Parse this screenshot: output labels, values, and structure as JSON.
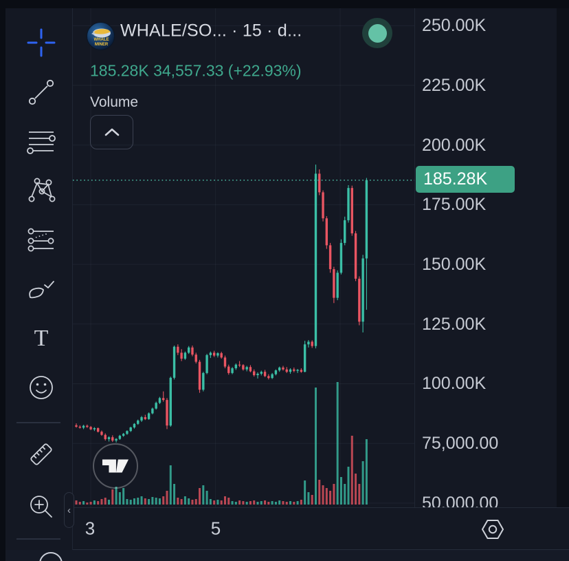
{
  "header": {
    "logo_name": "whale-miner-logo",
    "logo_text": "WHALE MINER",
    "symbol_title": "WHALE/SO... · 15 · d...",
    "price_line": "185.28K 34,557.33 (+22.93%)",
    "status": "connected",
    "indicator_label": "Volume"
  },
  "toolbar": {
    "collapse_chevron": "‹",
    "items": [
      "crosshair",
      "trend-line",
      "fib-retracement",
      "xabcd-pattern",
      "prediction-lines",
      "brush",
      "text",
      "emoji",
      "measure",
      "zoom-in"
    ]
  },
  "price_axis": {
    "labels": [
      "250.00K",
      "225.00K",
      "200.00K",
      "175.00K",
      "150.00K",
      "125.00K",
      "100.00K",
      "75,000.00",
      "50,000.00"
    ],
    "current_price_badge": "185.28K",
    "badge_color": "#3da184"
  },
  "time_axis": {
    "labels": [
      "3",
      "5"
    ],
    "settings_icon": "hexagon-settings-icon"
  },
  "colors": {
    "background": "#141823",
    "up": "#3bbfa6",
    "down": "#e95562",
    "accent_teal_text": "#3fa88d",
    "current_price_line": "#4cbaa2",
    "grid": "rgba(125,135,155,0.10)"
  },
  "chart_data": {
    "type": "candlestick+volume",
    "title": "WHALE/SO... 15 minute chart",
    "current_price": 185.28,
    "price_unit": "K",
    "y_ticks": [
      "250.00K",
      "225.00K",
      "200.00K",
      "175.00K",
      "150.00K",
      "125.00K",
      "100.00K",
      "75,000.00",
      "50,000.00"
    ],
    "y_tick_prices": [
      250,
      225,
      200,
      175,
      150,
      125,
      100,
      75,
      50
    ],
    "x_ticks": [
      "3",
      "5"
    ],
    "legend": "Volume",
    "grid": true,
    "candles_format": [
      "open",
      "high",
      "low",
      "close",
      "volume"
    ],
    "candles": [
      [
        82.6,
        83.4,
        81.6,
        82.0,
        6
      ],
      [
        82.0,
        82.6,
        81.2,
        81.6,
        4
      ],
      [
        81.6,
        82.8,
        81.0,
        82.4,
        5
      ],
      [
        82.4,
        82.9,
        81.5,
        81.9,
        3
      ],
      [
        81.9,
        82.3,
        80.6,
        80.9,
        4
      ],
      [
        80.9,
        81.8,
        80.2,
        81.4,
        6
      ],
      [
        81.4,
        81.7,
        79.6,
        79.9,
        5
      ],
      [
        79.9,
        80.4,
        78.2,
        78.6,
        8
      ],
      [
        78.6,
        79.2,
        76.2,
        76.8,
        10
      ],
      [
        76.8,
        78.0,
        75.8,
        77.6,
        7
      ],
      [
        77.6,
        78.4,
        75.6,
        76.2,
        22
      ],
      [
        76.2,
        77.2,
        75.4,
        76.9,
        26
      ],
      [
        76.9,
        78.6,
        76.5,
        78.2,
        18
      ],
      [
        78.2,
        79.4,
        77.8,
        79.0,
        24
      ],
      [
        79.0,
        80.5,
        78.6,
        80.2,
        8
      ],
      [
        80.2,
        82.0,
        79.8,
        81.7,
        7
      ],
      [
        81.7,
        83.5,
        81.2,
        83.2,
        9
      ],
      [
        83.2,
        85.0,
        82.8,
        84.6,
        10
      ],
      [
        84.6,
        86.5,
        84.0,
        86.0,
        12
      ],
      [
        86.0,
        87.0,
        84.8,
        85.2,
        9
      ],
      [
        85.2,
        88.0,
        84.9,
        87.6,
        8
      ],
      [
        87.6,
        90.0,
        87.2,
        89.6,
        11
      ],
      [
        89.6,
        92.5,
        89.2,
        92.0,
        10
      ],
      [
        92.0,
        94.5,
        91.5,
        94.0,
        9
      ],
      [
        94.0,
        96.8,
        92.5,
        93.2,
        12
      ],
      [
        93.2,
        94.0,
        81.0,
        82.5,
        20
      ],
      [
        82.5,
        103.0,
        82.0,
        102.5,
        57
      ],
      [
        102.5,
        116.0,
        101.8,
        115.5,
        30
      ],
      [
        115.5,
        116.5,
        112.0,
        113.0,
        10
      ],
      [
        113.0,
        114.5,
        109.5,
        110.5,
        8
      ],
      [
        110.5,
        113.5,
        110.0,
        113.0,
        12
      ],
      [
        113.0,
        115.8,
        112.5,
        115.2,
        9
      ],
      [
        115.2,
        116.0,
        111.5,
        112.2,
        7
      ],
      [
        112.2,
        113.0,
        108.5,
        109.2,
        8
      ],
      [
        109.2,
        110.0,
        96.2,
        97.5,
        24
      ],
      [
        97.5,
        105.0,
        96.8,
        104.5,
        28
      ],
      [
        104.5,
        112.5,
        104.0,
        112.0,
        20
      ],
      [
        112.0,
        113.5,
        110.8,
        113.0,
        8
      ],
      [
        113.0,
        113.8,
        111.2,
        111.8,
        6
      ],
      [
        111.8,
        113.2,
        111.0,
        112.8,
        7
      ],
      [
        112.8,
        113.4,
        110.5,
        111.0,
        6
      ],
      [
        111.0,
        111.8,
        106.5,
        107.2,
        12
      ],
      [
        107.2,
        108.0,
        103.8,
        104.5,
        10
      ],
      [
        104.5,
        107.0,
        104.0,
        106.5,
        5
      ],
      [
        106.5,
        108.5,
        105.8,
        108.0,
        4
      ],
      [
        108.0,
        109.5,
        107.0,
        107.8,
        6
      ],
      [
        107.8,
        108.2,
        105.5,
        106.0,
        5
      ],
      [
        106.0,
        107.5,
        105.2,
        107.0,
        4
      ],
      [
        107.0,
        107.8,
        104.8,
        105.2,
        5
      ],
      [
        105.2,
        106.0,
        103.0,
        103.6,
        6
      ],
      [
        103.6,
        104.8,
        102.2,
        104.2,
        4
      ],
      [
        104.2,
        105.5,
        103.5,
        105.0,
        5
      ],
      [
        105.0,
        105.8,
        102.8,
        103.2,
        6
      ],
      [
        103.2,
        104.0,
        101.8,
        102.4,
        4
      ],
      [
        102.4,
        104.5,
        102.0,
        104.0,
        5
      ],
      [
        104.0,
        106.0,
        103.5,
        105.6,
        4
      ],
      [
        105.6,
        107.2,
        105.0,
        106.8,
        6
      ],
      [
        106.8,
        107.5,
        105.5,
        106.0,
        5
      ],
      [
        106.0,
        107.0,
        104.5,
        105.0,
        4
      ],
      [
        105.0,
        106.5,
        104.2,
        106.0,
        5
      ],
      [
        106.0,
        106.8,
        104.8,
        105.4,
        4
      ],
      [
        105.4,
        106.2,
        104.5,
        105.8,
        5
      ],
      [
        105.8,
        106.5,
        104.6,
        105.0,
        7
      ],
      [
        105.0,
        118.0,
        104.8,
        116.5,
        35
      ],
      [
        116.5,
        118.3,
        115.2,
        117.6,
        18
      ],
      [
        117.6,
        118.2,
        115.0,
        115.8,
        14
      ],
      [
        115.8,
        191.8,
        114.8,
        188.0,
        170
      ],
      [
        188.0,
        189.8,
        179.0,
        180.2,
        36
      ],
      [
        180.2,
        181.0,
        168.0,
        169.3,
        28
      ],
      [
        169.3,
        170.2,
        156.5,
        158.0,
        24
      ],
      [
        158.0,
        159.0,
        146.5,
        148.0,
        20
      ],
      [
        148.0,
        149.0,
        133.8,
        136.0,
        30
      ],
      [
        136.0,
        147.5,
        135.0,
        146.5,
        178
      ],
      [
        146.5,
        160.5,
        145.8,
        159.0,
        40
      ],
      [
        159.0,
        170.0,
        158.0,
        168.5,
        30
      ],
      [
        168.5,
        183.2,
        167.5,
        182.0,
        55
      ],
      [
        182.0,
        183.0,
        162.0,
        163.0,
        100
      ],
      [
        163.0,
        164.0,
        143.0,
        144.0,
        45
      ],
      [
        144.0,
        145.0,
        124.5,
        126.0,
        30
      ],
      [
        126.0,
        154.0,
        121.5,
        152.5,
        63
      ],
      [
        152.5,
        186.2,
        131.0,
        185.28,
        95
      ]
    ]
  }
}
